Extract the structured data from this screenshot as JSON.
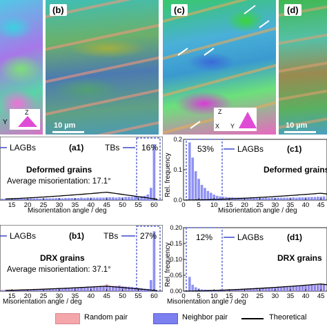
{
  "maps": {
    "b": {
      "label": "(b)",
      "scale": "10 µm"
    },
    "c": {
      "label": "(c)",
      "axis_z": "Z",
      "axis_x": "X",
      "axis_y": "Y"
    },
    "d": {
      "label": "(d)",
      "scale": "10 µm"
    },
    "a": {
      "axis_y": "Y",
      "axis_z": "Z"
    }
  },
  "plots": {
    "a1": {
      "tag": "(a1)",
      "lagbs": "LAGBs",
      "tbs": "TBs",
      "tbs_pct": "16%",
      "title": "Deformed grains",
      "subtitle": "Average misorientation: 17.1°",
      "xticks": [
        "15",
        "20",
        "25",
        "30",
        "35",
        "40",
        "45",
        "50",
        "55",
        "60"
      ],
      "xlabel": "Misorientation angle / deg"
    },
    "b1": {
      "tag": "(b1)",
      "lagbs": "LAGBs",
      "tbs": "TBs",
      "tbs_pct": "27%",
      "title": "DRX grains",
      "subtitle": "Average misorientation: 37.1°",
      "xticks": [
        "15",
        "20",
        "25",
        "30",
        "35",
        "40",
        "45",
        "50",
        "55",
        "60"
      ],
      "xlabel": "Misorientation angle / deg"
    },
    "c1": {
      "tag": "(c1)",
      "lagbs": "LAGBs",
      "pct": "53%",
      "title": "Deformed grains",
      "ylabel": "Rel. frequency",
      "yticks": [
        "0.0",
        "0.1",
        "0.2"
      ],
      "xticks": [
        "0",
        "5",
        "10",
        "15",
        "20",
        "25",
        "30",
        "35",
        "40",
        "45"
      ],
      "xlabel": "Misorientation angle / deg"
    },
    "d1": {
      "tag": "(d1)",
      "lagbs": "LAGBs",
      "pct": "12%",
      "title": "DRX grains",
      "ylabel": "Rel. frequency",
      "yticks": [
        "0.00",
        "0.05",
        "0.10",
        "0.15",
        "0.20"
      ],
      "xticks": [
        "0",
        "5",
        "10",
        "15",
        "20",
        "25",
        "30",
        "35",
        "40",
        "45"
      ],
      "xlabel": "Misorientation angle / deg"
    }
  },
  "legend": {
    "random": "Random pair",
    "neighbor": "Neighbor pair",
    "theoretical": "Theoretical"
  },
  "colors": {
    "neighbor": "#7b7ff0",
    "random": "#f4a6aa",
    "dash_box": "#3a49c9",
    "theory": "#000000"
  },
  "chart_data": [
    {
      "type": "bar",
      "panel": "a1",
      "xlabel": "Misorientation angle / deg",
      "series": [
        {
          "name": "Neighbor pair",
          "x": [
            12,
            13,
            14,
            15,
            16,
            17,
            18,
            19,
            20,
            21,
            22,
            23,
            24,
            25,
            26,
            27,
            28,
            29,
            30,
            31,
            32,
            33,
            34,
            35,
            36,
            37,
            38,
            39,
            40,
            41,
            42,
            43,
            44,
            45,
            46,
            47,
            48,
            49,
            50,
            51,
            52,
            53,
            54,
            55,
            56,
            57,
            58,
            59,
            60
          ],
          "values": [
            0.004,
            0.004,
            0.004,
            0.005,
            0.004,
            0.004,
            0.005,
            0.004,
            0.004,
            0.005,
            0.005,
            0.005,
            0.004,
            0.005,
            0.005,
            0.005,
            0.005,
            0.006,
            0.006,
            0.005,
            0.006,
            0.006,
            0.006,
            0.006,
            0.006,
            0.007,
            0.006,
            0.007,
            0.007,
            0.007,
            0.007,
            0.007,
            0.007,
            0.008,
            0.008,
            0.008,
            0.007,
            0.008,
            0.008,
            0.009,
            0.009,
            0.009,
            0.01,
            0.01,
            0.011,
            0.012,
            0.016,
            0.035,
            0.16
          ]
        }
      ]
    },
    {
      "type": "bar",
      "panel": "b1",
      "xlabel": "Misorientation angle / deg",
      "series": [
        {
          "name": "Neighbor pair",
          "x": [
            12,
            13,
            14,
            15,
            16,
            17,
            18,
            19,
            20,
            21,
            22,
            23,
            24,
            25,
            26,
            27,
            28,
            29,
            30,
            31,
            32,
            33,
            34,
            35,
            36,
            37,
            38,
            39,
            40,
            41,
            42,
            43,
            44,
            45,
            46,
            47,
            48,
            49,
            50,
            51,
            52,
            53,
            54,
            55,
            56,
            57,
            58,
            59,
            60
          ],
          "values": [
            0.004,
            0.005,
            0.005,
            0.005,
            0.006,
            0.006,
            0.006,
            0.007,
            0.007,
            0.007,
            0.008,
            0.008,
            0.008,
            0.009,
            0.009,
            0.009,
            0.01,
            0.01,
            0.011,
            0.012,
            0.012,
            0.013,
            0.013,
            0.014,
            0.014,
            0.015,
            0.016,
            0.016,
            0.017,
            0.018,
            0.017,
            0.019,
            0.02,
            0.02,
            0.021,
            0.022,
            0.022,
            0.024,
            0.021,
            0.02,
            0.02,
            0.019,
            0.016,
            0.015,
            0.013,
            0.011,
            0.01,
            0.05,
            0.27
          ]
        },
        {
          "name": "Random pair",
          "x": [
            12,
            13,
            14,
            15,
            16,
            17,
            18,
            19,
            20,
            21,
            22,
            23,
            24,
            25,
            26,
            27,
            28,
            29,
            30,
            31,
            32,
            33,
            34,
            35,
            36,
            37,
            38,
            39,
            40,
            41,
            42,
            43,
            44,
            45,
            46,
            47,
            48,
            49,
            50,
            51,
            52,
            53,
            54,
            55,
            56,
            57,
            58,
            59,
            60
          ],
          "values": [
            0.006,
            0.006,
            0.007,
            0.007,
            0.007,
            0.008,
            0.008,
            0.008,
            0.009,
            0.009,
            0.01,
            0.01,
            0.011,
            0.011,
            0.012,
            0.012,
            0.013,
            0.013,
            0.014,
            0.014,
            0.015,
            0.016,
            0.016,
            0.017,
            0.017,
            0.018,
            0.018,
            0.019,
            0.02,
            0.02,
            0.021,
            0.021,
            0.022,
            0.032,
            0.023,
            0.024,
            0.024,
            0.026,
            0.022,
            0.02,
            0.018,
            0.017,
            0.015,
            0.013,
            0.011,
            0.009,
            0.007,
            0.004,
            0.002
          ]
        }
      ]
    },
    {
      "type": "bar",
      "panel": "c1",
      "xlabel": "Misorientation angle / deg",
      "ylabel": "Rel. frequency",
      "ylim": [
        0,
        0.2
      ],
      "series": [
        {
          "name": "Neighbor pair",
          "x": [
            2,
            3,
            4,
            5,
            6,
            7,
            8,
            9,
            10,
            11,
            12,
            13,
            14,
            15,
            16,
            17,
            18,
            19,
            20,
            21,
            22,
            23,
            24,
            25,
            26,
            27,
            28,
            29,
            30,
            31,
            32,
            33,
            34,
            35,
            36,
            37,
            38,
            39,
            40,
            41,
            42,
            43,
            44,
            45,
            46
          ],
          "values": [
            0.19,
            0.14,
            0.095,
            0.07,
            0.05,
            0.04,
            0.03,
            0.024,
            0.018,
            0.014,
            0.012,
            0.011,
            0.01,
            0.009,
            0.009,
            0.008,
            0.008,
            0.008,
            0.008,
            0.008,
            0.007,
            0.008,
            0.007,
            0.008,
            0.007,
            0.008,
            0.007,
            0.008,
            0.007,
            0.008,
            0.008,
            0.008,
            0.008,
            0.008,
            0.009,
            0.008,
            0.009,
            0.009,
            0.009,
            0.01,
            0.01,
            0.01,
            0.011,
            0.011,
            0.012
          ]
        }
      ]
    },
    {
      "type": "bar",
      "panel": "d1",
      "xlabel": "Misorientation angle / deg",
      "ylabel": "Rel. frequency",
      "ylim": [
        0,
        0.2
      ],
      "series": [
        {
          "name": "Neighbor pair",
          "x": [
            2,
            3,
            4,
            5,
            6,
            7,
            8,
            9,
            10,
            11,
            12,
            13,
            14,
            15,
            16,
            17,
            18,
            19,
            20,
            21,
            22,
            23,
            24,
            25,
            26,
            27,
            28,
            29,
            30,
            31,
            32,
            33,
            34,
            35,
            36,
            37,
            38,
            39,
            40,
            41,
            42,
            43,
            44,
            45,
            46
          ],
          "values": [
            0.045,
            0.02,
            0.012,
            0.008,
            0.006,
            0.005,
            0.004,
            0.004,
            0.004,
            0.004,
            0.005,
            0.005,
            0.005,
            0.006,
            0.006,
            0.006,
            0.007,
            0.007,
            0.008,
            0.008,
            0.009,
            0.009,
            0.01,
            0.01,
            0.011,
            0.011,
            0.012,
            0.012,
            0.013,
            0.013,
            0.014,
            0.014,
            0.015,
            0.015,
            0.016,
            0.016,
            0.017,
            0.017,
            0.018,
            0.018,
            0.019,
            0.019,
            0.02,
            0.02,
            0.021
          ]
        },
        {
          "name": "Random pair",
          "x": [
            2,
            3,
            4,
            5,
            6,
            7,
            8,
            9,
            10,
            11,
            12,
            13,
            14,
            15,
            16,
            17,
            18,
            19,
            20,
            21,
            22,
            23,
            24,
            25,
            26,
            27,
            28,
            29,
            30,
            31,
            32,
            33,
            34,
            35,
            36,
            37,
            38,
            39,
            40,
            41,
            42,
            43,
            44,
            45,
            46
          ],
          "values": [
            0.001,
            0.001,
            0.001,
            0.002,
            0.002,
            0.003,
            0.003,
            0.003,
            0.004,
            0.004,
            0.005,
            0.005,
            0.005,
            0.006,
            0.006,
            0.007,
            0.007,
            0.008,
            0.008,
            0.009,
            0.009,
            0.01,
            0.01,
            0.011,
            0.011,
            0.012,
            0.012,
            0.013,
            0.013,
            0.014,
            0.014,
            0.015,
            0.015,
            0.016,
            0.016,
            0.017,
            0.017,
            0.018,
            0.018,
            0.019,
            0.019,
            0.02,
            0.02,
            0.021,
            0.021
          ]
        }
      ]
    }
  ]
}
